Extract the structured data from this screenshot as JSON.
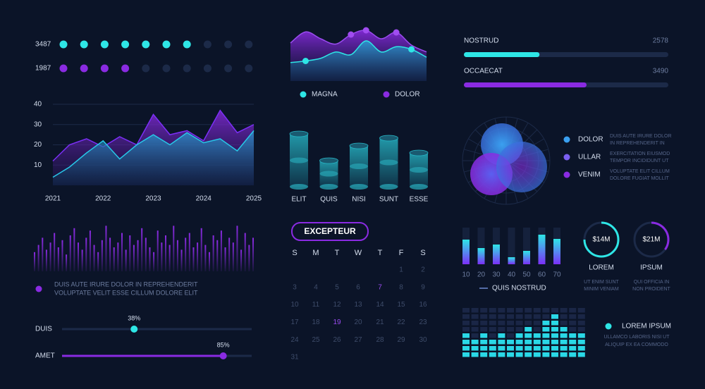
{
  "dot_rows": {
    "total": 10,
    "rows": [
      {
        "label": "3487",
        "filled": 7,
        "color": "#2ee6e6"
      },
      {
        "label": "1987",
        "filled": 4,
        "color": "#8a2be2"
      }
    ]
  },
  "area_chart": {
    "type": "area",
    "x": [
      2021,
      2021.33,
      2021.67,
      2022,
      2022.33,
      2022.67,
      2023,
      2023.33,
      2023.67,
      2024,
      2024.33,
      2024.67,
      2025
    ],
    "xlim": [
      2021,
      2025
    ],
    "xticks": [
      2021,
      2022,
      2023,
      2024,
      2025
    ],
    "ylim": [
      0,
      40
    ],
    "yticks": [
      10,
      20,
      30,
      40
    ],
    "grid": true,
    "series": [
      {
        "color": "#7b2ff7",
        "values": [
          12,
          20,
          23,
          19,
          24,
          20,
          35,
          25,
          27,
          22,
          37,
          26,
          30
        ]
      },
      {
        "color": "#27c8e8",
        "values": [
          4,
          9,
          16,
          22,
          13,
          20,
          25,
          20,
          26,
          21,
          23,
          17,
          27
        ]
      }
    ]
  },
  "wave_chart": {
    "type": "area",
    "ylim": [
      0,
      100
    ],
    "series": [
      {
        "name": "MAGNA",
        "color": "#2ee6e6",
        "values": [
          35,
          38,
          43,
          55,
          50,
          76,
          55,
          65,
          60,
          45
        ],
        "markers": [
          1,
          8
        ]
      },
      {
        "name": "DOLOR",
        "color": "#8a2be2",
        "values": [
          72,
          93,
          80,
          70,
          88,
          96,
          80,
          92,
          68,
          55
        ],
        "markers": [
          4,
          5,
          7
        ]
      }
    ]
  },
  "cylinder_chart": {
    "type": "bar",
    "categories": [
      "ELIT",
      "QUIS",
      "NISI",
      "SUNT",
      "ESSE"
    ],
    "values": [
      75,
      37,
      58,
      69,
      48
    ],
    "ylim": [
      0,
      80
    ],
    "color": "#27b8c8"
  },
  "pulse_chart": {
    "type": "bar",
    "color": "#8a2be2",
    "ylim": [
      0,
      100
    ],
    "values": [
      40,
      55,
      70,
      45,
      60,
      80,
      50,
      65,
      35,
      75,
      90,
      60,
      45,
      70,
      85,
      55,
      40,
      65,
      95,
      70,
      50,
      60,
      80,
      45,
      75,
      55,
      65,
      90,
      70,
      50,
      40,
      85,
      60,
      75,
      55,
      95,
      65,
      45,
      70,
      80,
      50,
      60,
      90,
      55,
      40,
      75,
      65,
      85,
      50,
      70,
      60,
      95,
      45,
      80,
      55,
      70
    ],
    "caption": [
      "DUIS AUTE IRURE DOLOR IN REPREHENDERIT",
      "VOLUPTATE VELIT ESSE CILLUM DOLORE ELIT"
    ]
  },
  "sliders": {
    "labels": [
      "DUIS",
      "AMET"
    ],
    "values": [
      38,
      85
    ],
    "value_labels": [
      "38%",
      "85%"
    ],
    "colors": [
      "#2ee6e6",
      "#8a2be2"
    ]
  },
  "calendar": {
    "button": "EXCEPTEUR",
    "weekdays": [
      "S",
      "M",
      "T",
      "W",
      "T",
      "F",
      "S"
    ],
    "start_weekday": 5,
    "days": [
      1,
      2,
      3,
      4,
      5,
      6,
      7,
      8,
      9,
      10,
      11,
      12,
      13,
      14,
      15,
      16,
      17,
      18,
      19,
      20,
      21,
      22,
      23,
      24,
      25,
      26,
      27,
      28,
      29,
      30,
      31
    ],
    "highlighted": [
      7,
      19
    ]
  },
  "progress_bars": [
    {
      "label": "NOSTRUD",
      "value": "2578",
      "fill": 37,
      "color": "#2ee6e6"
    },
    {
      "label": "OCCAECAT",
      "value": "3490",
      "fill": 60,
      "color": "#8a2be2"
    }
  ],
  "venn": {
    "values": [
      30,
      30,
      36
    ],
    "legend": [
      {
        "label": "DOLOR",
        "color": "#3aa0f0",
        "text": [
          "DUIS AUTE IRURE DOLOR",
          "IN REPREHENDERIT IN"
        ]
      },
      {
        "label": "ULLAR",
        "color": "#7a5ff0",
        "text": [
          "EXERCITATION EIUSMOD",
          "TEMPOR INCIDIDUNT UT"
        ]
      },
      {
        "label": "VENIM",
        "color": "#8a2be2",
        "text": [
          "VOLUPTATE ELIT CILLUM",
          "DOLORE FUGIAT MOLLIT"
        ]
      }
    ]
  },
  "small_bars": {
    "type": "bar",
    "categories": [
      "10",
      "20",
      "30",
      "40",
      "50",
      "60",
      "70"
    ],
    "values": [
      35,
      23,
      28,
      10,
      19,
      42,
      36
    ],
    "ylim": [
      0,
      52
    ],
    "legend": "QUIS NOSTRUD"
  },
  "donuts": {
    "values": [
      14,
      21
    ],
    "value_labels": [
      "$14M",
      "$21M"
    ],
    "progress": [
      75,
      35
    ],
    "labels": [
      "LOREM",
      "IPSUM"
    ],
    "texts": [
      [
        "UT ENIM SUNT",
        "MINIM VENIAM"
      ],
      [
        "QUI OFFICIA IN",
        "NON PROIDENT"
      ]
    ]
  },
  "equalizer": {
    "rows": 8,
    "values": [
      4,
      3,
      4,
      3,
      4,
      3,
      4,
      5,
      4,
      6,
      7,
      5,
      4,
      4
    ],
    "legend": "LOREM IPSUM",
    "text": [
      "ULLAMCO LABORIS NISI UT",
      "ALIQUIP EX EA COMMODO"
    ]
  }
}
